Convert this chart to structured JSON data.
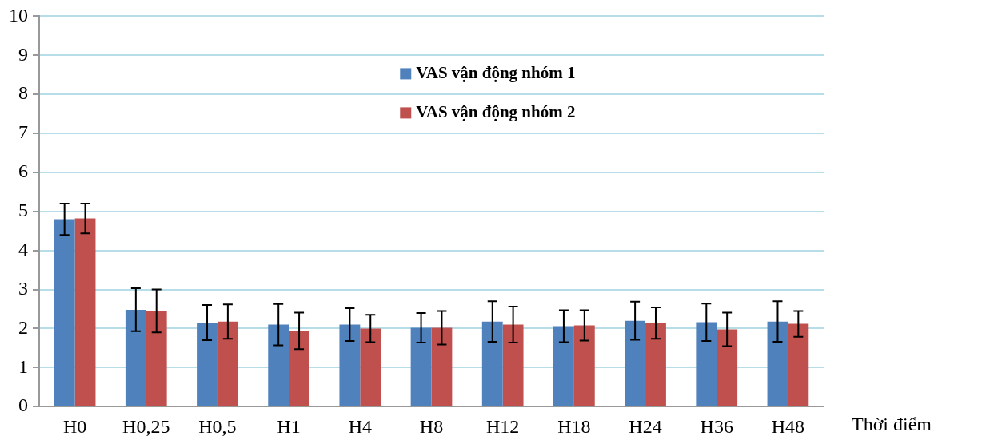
{
  "chart_data": {
    "type": "bar",
    "xlabel": "Thời điểm",
    "categories": [
      "H0",
      "H0,25",
      "H0,5",
      "H1",
      "H4",
      "H8",
      "H12",
      "H18",
      "H24",
      "H36",
      "H48"
    ],
    "series": [
      {
        "name": "VAS vận động nhóm 1",
        "color": "#4f81bd",
        "values": [
          4.8,
          2.48,
          2.15,
          2.1,
          2.1,
          2.02,
          2.18,
          2.06,
          2.2,
          2.16,
          2.18
        ],
        "errors": [
          0.4,
          0.55,
          0.45,
          0.53,
          0.42,
          0.38,
          0.52,
          0.41,
          0.49,
          0.48,
          0.52
        ]
      },
      {
        "name": "VAS vận động nhóm 2",
        "color": "#c0504d",
        "values": [
          4.82,
          2.45,
          2.18,
          1.94,
          2.0,
          2.02,
          2.1,
          2.08,
          2.14,
          1.98,
          2.12
        ],
        "errors": [
          0.38,
          0.55,
          0.44,
          0.47,
          0.35,
          0.43,
          0.46,
          0.39,
          0.4,
          0.43,
          0.33
        ]
      }
    ],
    "ylim": [
      0,
      10
    ],
    "yticks": [
      0,
      1,
      2,
      3,
      4,
      5,
      6,
      7,
      8,
      9,
      10
    ],
    "grid": "y",
    "legend": "top"
  }
}
